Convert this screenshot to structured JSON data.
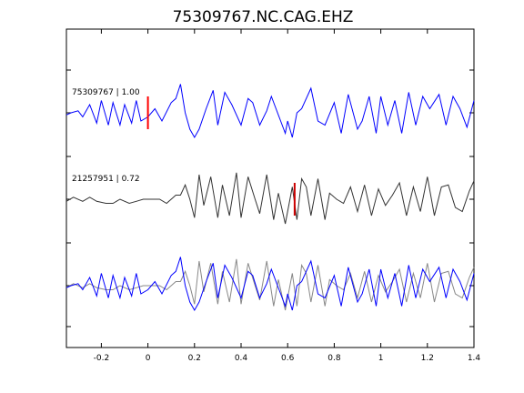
{
  "chart_data": {
    "type": "line",
    "title": "75309767.NC.CAG.EHZ",
    "xlabel": "",
    "ylabel": "",
    "xlim": [
      -0.35,
      1.4
    ],
    "x_ticks": [
      -0.2,
      0,
      0.2,
      0.4,
      0.6,
      0.8,
      1,
      1.2,
      1.4
    ],
    "x_tick_labels": [
      "-0.2",
      "0",
      "0.2",
      "0.4",
      "0.6",
      "0.8",
      "1",
      "1.2",
      "1.4"
    ],
    "y_ticks": [
      1,
      2,
      3,
      4,
      5,
      6,
      7
    ],
    "grid": false,
    "traces": [
      {
        "label": "75309767 | 1.00",
        "color": "#0000ff",
        "pick_time": 0.0,
        "pick_color": "#ff0000",
        "times": [
          -0.35,
          -0.33,
          -0.3,
          -0.28,
          -0.25,
          -0.22,
          -0.2,
          -0.17,
          -0.15,
          -0.12,
          -0.1,
          -0.07,
          -0.05,
          -0.03,
          0.0,
          0.03,
          0.06,
          0.1,
          0.12,
          0.14,
          0.16,
          0.18,
          0.2,
          0.22,
          0.25,
          0.28,
          0.3,
          0.33,
          0.36,
          0.4,
          0.43,
          0.45,
          0.48,
          0.51,
          0.53,
          0.55,
          0.57,
          0.59,
          0.6,
          0.62,
          0.64,
          0.66,
          0.7,
          0.73,
          0.76,
          0.8,
          0.83,
          0.86,
          0.9,
          0.92,
          0.95,
          0.98,
          1.0,
          1.03,
          1.06,
          1.09,
          1.12,
          1.15,
          1.18,
          1.21,
          1.25,
          1.28,
          1.31,
          1.34,
          1.37,
          1.4
        ],
        "values": [
          -0.05,
          0.0,
          0.05,
          -0.1,
          0.2,
          -0.25,
          0.3,
          -0.3,
          0.25,
          -0.3,
          0.2,
          -0.25,
          0.3,
          -0.2,
          -0.1,
          0.1,
          -0.2,
          0.25,
          0.35,
          0.7,
          0.0,
          -0.4,
          -0.6,
          -0.4,
          0.1,
          0.55,
          -0.3,
          0.5,
          0.2,
          -0.3,
          0.35,
          0.25,
          -0.3,
          0.05,
          0.4,
          0.1,
          -0.2,
          -0.5,
          -0.2,
          -0.6,
          0.0,
          0.1,
          0.6,
          -0.2,
          -0.3,
          0.25,
          -0.5,
          0.45,
          -0.4,
          -0.2,
          0.4,
          -0.5,
          0.4,
          -0.3,
          0.3,
          -0.5,
          0.5,
          -0.3,
          0.4,
          0.1,
          0.45,
          -0.3,
          0.4,
          0.1,
          -0.35,
          0.3
        ]
      },
      {
        "label": "21257951 | 0.72",
        "color": "#333333",
        "pick_time": 0.63,
        "pick_color": "#cc0000",
        "times": [
          -0.35,
          -0.32,
          -0.28,
          -0.25,
          -0.22,
          -0.18,
          -0.15,
          -0.12,
          -0.08,
          -0.05,
          -0.02,
          0.02,
          0.05,
          0.08,
          0.12,
          0.14,
          0.16,
          0.18,
          0.2,
          0.22,
          0.24,
          0.27,
          0.3,
          0.32,
          0.35,
          0.38,
          0.4,
          0.43,
          0.46,
          0.48,
          0.51,
          0.54,
          0.56,
          0.59,
          0.62,
          0.64,
          0.66,
          0.68,
          0.7,
          0.73,
          0.76,
          0.78,
          0.81,
          0.84,
          0.87,
          0.9,
          0.93,
          0.96,
          0.99,
          1.02,
          1.05,
          1.08,
          1.11,
          1.14,
          1.17,
          1.2,
          1.23,
          1.26,
          1.29,
          1.32,
          1.35,
          1.38,
          1.4
        ],
        "values": [
          -0.05,
          0.05,
          -0.05,
          0.05,
          -0.05,
          -0.1,
          -0.1,
          0.0,
          -0.1,
          -0.05,
          0.0,
          0.0,
          0.0,
          -0.1,
          0.1,
          0.1,
          0.35,
          0.0,
          -0.45,
          0.6,
          -0.15,
          0.55,
          -0.45,
          0.35,
          -0.4,
          0.65,
          -0.45,
          0.55,
          0.0,
          -0.35,
          0.6,
          -0.5,
          0.15,
          -0.6,
          0.3,
          -0.5,
          0.5,
          0.3,
          -0.4,
          0.5,
          -0.5,
          0.15,
          0.0,
          -0.1,
          0.3,
          -0.3,
          0.35,
          -0.4,
          0.25,
          -0.15,
          0.1,
          0.4,
          -0.4,
          0.3,
          -0.3,
          0.55,
          -0.4,
          0.3,
          0.35,
          -0.2,
          -0.3,
          0.2,
          0.45
        ]
      }
    ]
  }
}
